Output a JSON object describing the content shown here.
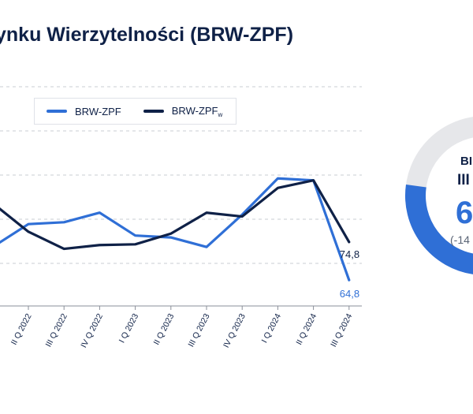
{
  "title": "ynku Wierzytelności (BRW-ZPF)",
  "chart_data": {
    "type": "line",
    "categories": [
      "II Q 2022",
      "III Q 2022",
      "IV Q 2022",
      "I Q 2023",
      "II Q 2023",
      "III Q 2023",
      "IV Q 2023",
      "I Q 2024",
      "II Q 2024",
      "III Q 2024"
    ],
    "series": [
      {
        "name": "BRW-ZPF",
        "color": "#2f6fd6",
        "values": [
          79.5,
          80.0,
          82.5,
          76.5,
          76.0,
          73.5,
          82.0,
          91.5,
          91.0,
          64.8
        ]
      },
      {
        "name": "BRW-ZPF",
        "subscript": "w",
        "color": "#0f2147",
        "values": [
          77.5,
          73.0,
          74.0,
          74.2,
          77.0,
          82.5,
          81.5,
          89.0,
          91.0,
          74.8
        ]
      }
    ],
    "leading_values": {
      "BRW-ZPF": [
        73.5
      ],
      "BRW-ZPF_w": [
        85.0
      ]
    },
    "end_labels": [
      "74,8",
      "64,8"
    ],
    "ylim": [
      58,
      116
    ],
    "grid": true
  },
  "donut": {
    "line1": "BI",
    "line2": "III",
    "value": "6",
    "change": "(-14",
    "share": 0.72,
    "fill_color": "#2f6fd6",
    "track_color": "#e6e7ea"
  }
}
